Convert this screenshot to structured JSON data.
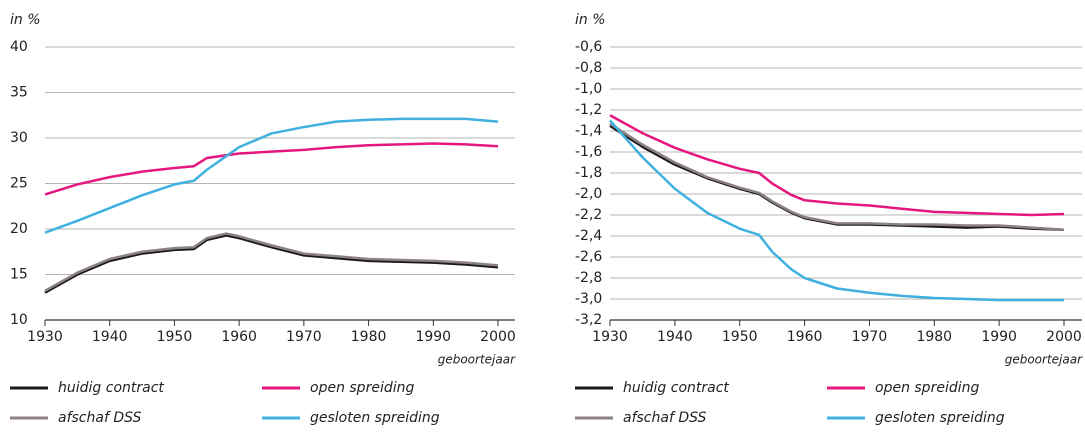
{
  "chart_data": [
    {
      "type": "line",
      "ylabel": "in %",
      "xlabel": "geboortejaar",
      "x": [
        1930,
        1935,
        1940,
        1945,
        1950,
        1953,
        1955,
        1958,
        1960,
        1965,
        1970,
        1975,
        1980,
        1985,
        1990,
        1995,
        2000
      ],
      "xlim": [
        1930,
        2000
      ],
      "xticks": [
        1930,
        1940,
        1950,
        1960,
        1970,
        1980,
        1990,
        2000
      ],
      "ylim": [
        10,
        40
      ],
      "yticks": [
        10,
        15,
        20,
        25,
        30,
        35,
        40
      ],
      "grid": true,
      "series": [
        {
          "name": "huidig contract",
          "color": "#1a1a1a",
          "values": [
            13,
            15,
            16.5,
            17.3,
            17.7,
            17.8,
            18.8,
            19.3,
            19.0,
            18.0,
            17.1,
            16.8,
            16.5,
            16.4,
            16.3,
            16.1,
            15.8
          ]
        },
        {
          "name": "afschaf DSS",
          "color": "#8c8282",
          "values": [
            13.2,
            15.2,
            16.7,
            17.5,
            17.9,
            18.0,
            19.0,
            19.5,
            19.2,
            18.2,
            17.3,
            17.0,
            16.7,
            16.6,
            16.5,
            16.3,
            16.0
          ]
        },
        {
          "name": "open spreiding",
          "color": "#e5177e",
          "values": [
            23.8,
            24.9,
            25.7,
            26.3,
            26.7,
            26.9,
            27.8,
            28.1,
            28.3,
            28.5,
            28.7,
            29.0,
            29.2,
            29.3,
            29.4,
            29.3,
            29.1
          ]
        },
        {
          "name": "gesloten spreiding",
          "color": "#3fb0e0",
          "values": [
            19.6,
            20.9,
            22.3,
            23.7,
            24.9,
            25.3,
            26.5,
            28.0,
            29.0,
            30.5,
            31.2,
            31.8,
            32.0,
            32.1,
            32.1,
            32.1,
            31.8
          ]
        }
      ]
    },
    {
      "type": "line",
      "ylabel": "in %",
      "xlabel": "geboortejaar",
      "x": [
        1930,
        1935,
        1940,
        1945,
        1950,
        1953,
        1955,
        1958,
        1960,
        1965,
        1970,
        1975,
        1980,
        1985,
        1990,
        1995,
        2000
      ],
      "xlim": [
        1930,
        2000
      ],
      "xticks": [
        1930,
        1940,
        1950,
        1960,
        1970,
        1980,
        1990,
        2000
      ],
      "ylim": [
        -3.2,
        -0.6
      ],
      "yticks": [
        {
          "value": -3.2,
          "label": "-3,2"
        },
        {
          "value": -3.0,
          "label": "-3,0"
        },
        {
          "value": -2.8,
          "label": "-2,8"
        },
        {
          "value": -2.6,
          "label": "-2,6"
        },
        {
          "value": -2.4,
          "label": "-2,4"
        },
        {
          "value": -2.2,
          "label": "-2,2"
        },
        {
          "value": -2.0,
          "label": "-2,0"
        },
        {
          "value": -1.8,
          "label": "-1,8"
        },
        {
          "value": -1.6,
          "label": "-1,6"
        },
        {
          "value": -1.4,
          "label": "-1,4"
        },
        {
          "value": -1.2,
          "label": "-1,2"
        },
        {
          "value": -1.0,
          "label": "-1,0"
        },
        {
          "value": -0.8,
          "label": "-0,8"
        },
        {
          "value": -0.6,
          "label": "-0,6"
        }
      ],
      "grid": true,
      "series": [
        {
          "name": "huidig contract",
          "color": "#1a1a1a",
          "values": [
            -1.35,
            -1.55,
            -1.72,
            -1.85,
            -1.95,
            -2.0,
            -2.08,
            -2.18,
            -2.23,
            -2.29,
            -2.29,
            -2.3,
            -2.31,
            -2.32,
            -2.31,
            -2.33,
            -2.34
          ]
        },
        {
          "name": "afschaf DSS",
          "color": "#8c8282",
          "values": [
            -1.33,
            -1.53,
            -1.7,
            -1.84,
            -1.94,
            -1.99,
            -2.07,
            -2.17,
            -2.22,
            -2.28,
            -2.28,
            -2.29,
            -2.29,
            -2.3,
            -2.3,
            -2.32,
            -2.34
          ]
        },
        {
          "name": "open spreiding",
          "color": "#e5177e",
          "values": [
            -1.25,
            -1.42,
            -1.56,
            -1.67,
            -1.76,
            -1.8,
            -1.9,
            -2.01,
            -2.06,
            -2.09,
            -2.11,
            -2.14,
            -2.17,
            -2.18,
            -2.19,
            -2.2,
            -2.19
          ]
        },
        {
          "name": "gesloten spreiding",
          "color": "#3fb0e0",
          "values": [
            -1.3,
            -1.65,
            -1.95,
            -2.18,
            -2.33,
            -2.39,
            -2.55,
            -2.72,
            -2.8,
            -2.9,
            -2.94,
            -2.97,
            -2.99,
            -3.0,
            -3.01,
            -3.01,
            -3.01
          ]
        }
      ]
    }
  ]
}
